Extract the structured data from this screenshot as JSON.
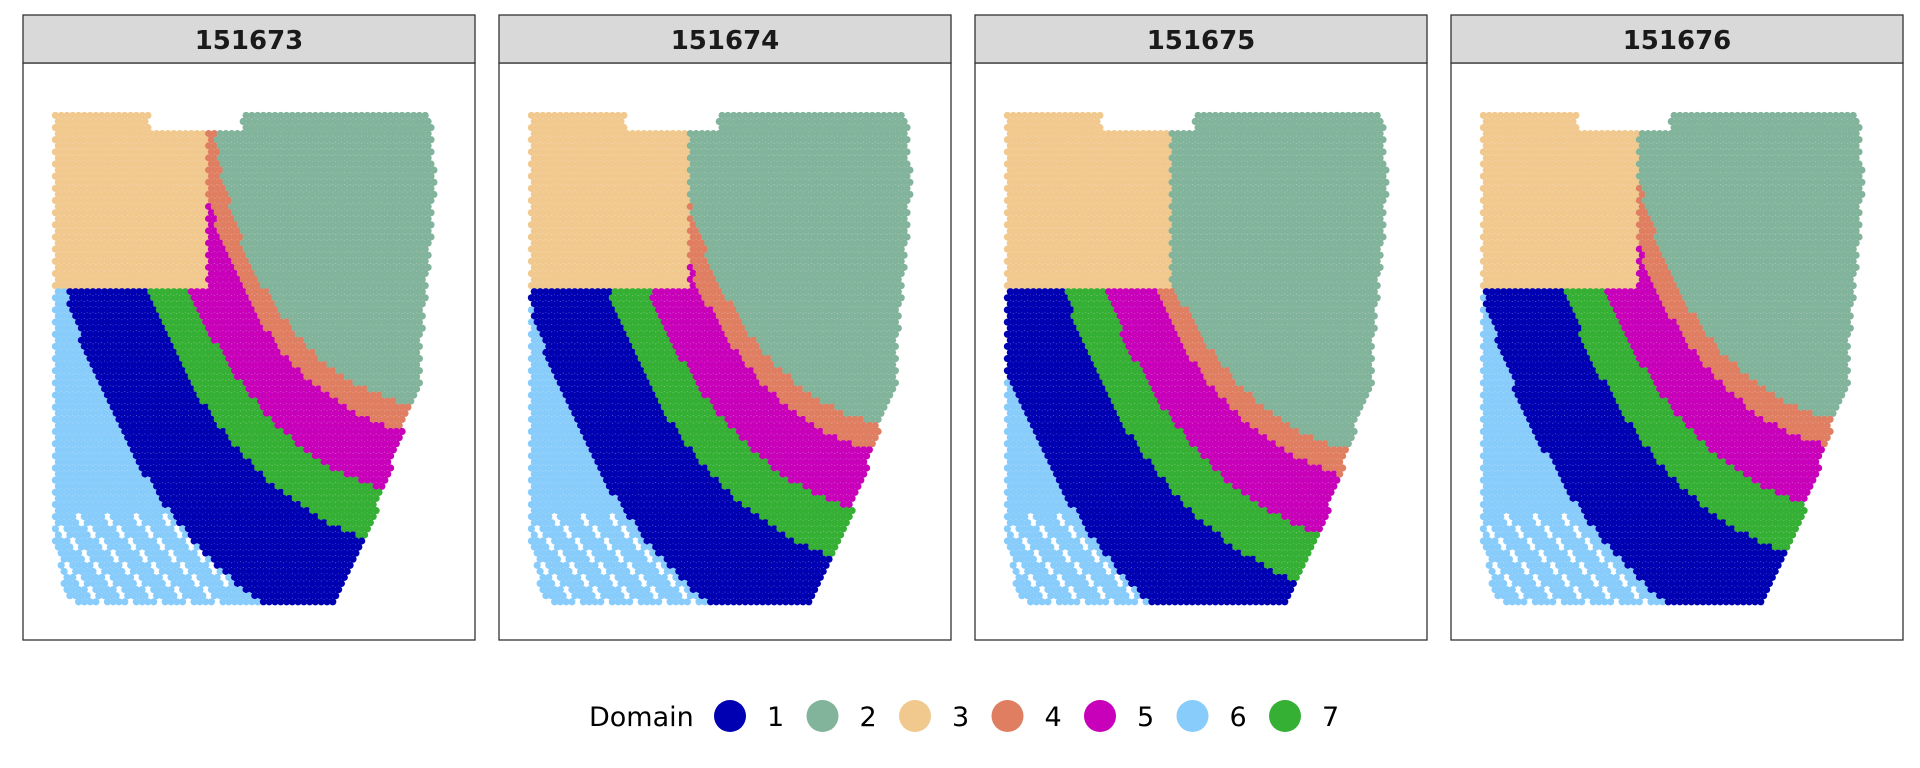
{
  "chart_data": {
    "type": "scatter",
    "kind": "spatial-domain-map",
    "panels": [
      {
        "title": "151673",
        "shift": 0.0
      },
      {
        "title": "151674",
        "shift": 0.04
      },
      {
        "title": "151675",
        "shift": 0.09
      },
      {
        "title": "151676",
        "shift": 0.03
      }
    ],
    "legend": {
      "title": "Domain",
      "position": "bottom",
      "items": [
        {
          "label": "1",
          "color": "#0000B3"
        },
        {
          "label": "2",
          "color": "#82B39B"
        },
        {
          "label": "3",
          "color": "#F1C98F"
        },
        {
          "label": "4",
          "color": "#E07E62"
        },
        {
          "label": "5",
          "color": "#C800B9"
        },
        {
          "label": "6",
          "color": "#88CCFC"
        },
        {
          "label": "7",
          "color": "#35B035"
        }
      ]
    },
    "grid": false
  }
}
